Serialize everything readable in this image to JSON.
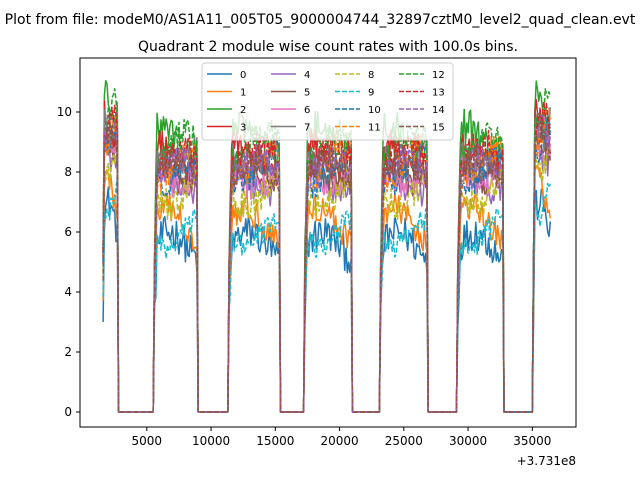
{
  "chart_data": {
    "type": "line",
    "suptitle": "Plot from file: modeM0/AS1A11_005T05_9000004744_32897cztM0_level2_quad_clean.evt",
    "title": "Quadrant 2 module wise count rates with 100.0s bins.",
    "xlabel": "",
    "ylabel": "",
    "x_offset_label": "+3.731e8",
    "xlim": [
      -200,
      38400
    ],
    "ylim": [
      -0.5,
      11.8
    ],
    "xticks": [
      5000,
      10000,
      15000,
      20000,
      25000,
      30000,
      35000
    ],
    "yticks": [
      0,
      2,
      4,
      6,
      8,
      10
    ],
    "grid": false,
    "legend_position": "upper-center",
    "legend_columns": 4,
    "segments": [
      [
        1600,
        2700
      ],
      [
        5600,
        8900
      ],
      [
        11400,
        15300
      ],
      [
        17300,
        20900
      ],
      [
        23200,
        26800
      ],
      [
        29200,
        32700
      ],
      [
        35100,
        36400
      ]
    ],
    "series": [
      {
        "name": "0",
        "color": "#1f77b4",
        "dash": false,
        "base": 5.5,
        "amp": 0.6
      },
      {
        "name": "1",
        "color": "#ff7f0e",
        "dash": false,
        "base": 6.3,
        "amp": 0.5
      },
      {
        "name": "2",
        "color": "#2ca02c",
        "dash": false,
        "base": 9.0,
        "amp": 0.6
      },
      {
        "name": "3",
        "color": "#d62728",
        "dash": false,
        "base": 8.5,
        "amp": 0.5
      },
      {
        "name": "4",
        "color": "#9467bd",
        "dash": false,
        "base": 7.8,
        "amp": 0.5
      },
      {
        "name": "5",
        "color": "#8c564b",
        "dash": false,
        "base": 8.2,
        "amp": 0.5
      },
      {
        "name": "6",
        "color": "#e377c2",
        "dash": false,
        "base": 8.0,
        "amp": 0.5
      },
      {
        "name": "7",
        "color": "#7f7f7f",
        "dash": false,
        "base": 8.6,
        "amp": 0.5
      },
      {
        "name": "8",
        "color": "#bcbd22",
        "dash": true,
        "base": 7.4,
        "amp": 0.5
      },
      {
        "name": "9",
        "color": "#17becf",
        "dash": true,
        "base": 6.0,
        "amp": 0.4
      },
      {
        "name": "10",
        "color": "#1f77b4",
        "dash": true,
        "base": 8.1,
        "amp": 0.5
      },
      {
        "name": "11",
        "color": "#ff7f0e",
        "dash": true,
        "base": 8.3,
        "amp": 0.5
      },
      {
        "name": "12",
        "color": "#2ca02c",
        "dash": true,
        "base": 8.8,
        "amp": 0.5
      },
      {
        "name": "13",
        "color": "#d62728",
        "dash": true,
        "base": 8.4,
        "amp": 0.5
      },
      {
        "name": "14",
        "color": "#9467bd",
        "dash": true,
        "base": 8.0,
        "amp": 0.5
      },
      {
        "name": "15",
        "color": "#8c564b",
        "dash": true,
        "base": 7.9,
        "amp": 0.5
      }
    ]
  }
}
